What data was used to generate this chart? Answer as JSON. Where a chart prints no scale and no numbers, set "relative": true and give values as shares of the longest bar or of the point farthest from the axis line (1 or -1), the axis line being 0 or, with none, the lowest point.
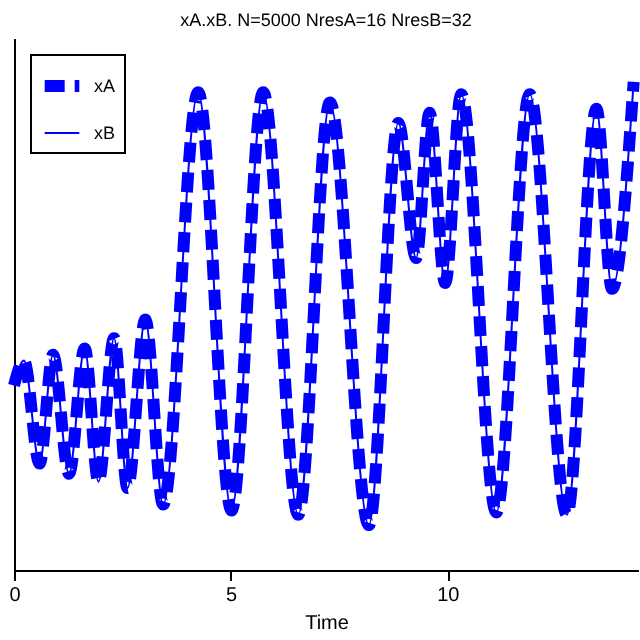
{
  "chart_data": {
    "type": "line",
    "title": "xA.xB. N=5000 NresA=16 NresB=32",
    "xlabel": "Time",
    "relative": true,
    "xlim": [
      0,
      14.4
    ],
    "xticks": [
      0,
      5,
      10
    ],
    "legend": "top left",
    "grid": false,
    "marker": "none",
    "x": [
      0,
      0.23,
      0.59,
      0.9,
      1.27,
      1.63,
      1.95,
      2.31,
      2.62,
      3.03,
      3.44,
      4.25,
      5.02,
      5.75,
      6.56,
      7.29,
      8.19,
      8.87,
      9.28,
      9.59,
      9.95,
      10.32,
      11.13,
      11.9,
      12.76,
      13.44,
      13.8,
      14.3
    ],
    "series": [
      {
        "name": "xA",
        "color": "#0000ff",
        "line_style": "dashed",
        "values": [
          0.378,
          0.429,
          0.218,
          0.441,
          0.197,
          0.454,
          0.181,
          0.475,
          0.168,
          0.513,
          0.134,
          0.979,
          0.122,
          0.979,
          0.113,
          0.958,
          0.092,
          0.916,
          0.639,
          0.937,
          0.588,
          0.975,
          0.118,
          0.975,
          0.113,
          0.945,
          0.576,
          1.0
        ]
      },
      {
        "name": "xB",
        "color": "#0000ff",
        "line_style": "solid",
        "values": [
          0.378,
          0.429,
          0.218,
          0.441,
          0.197,
          0.454,
          0.181,
          0.475,
          0.168,
          0.513,
          0.134,
          0.979,
          0.122,
          0.979,
          0.113,
          0.958,
          0.092,
          0.916,
          0.639,
          0.937,
          0.588,
          0.975,
          0.118,
          0.975,
          0.113,
          0.945,
          0.576,
          1.0
        ]
      }
    ]
  }
}
